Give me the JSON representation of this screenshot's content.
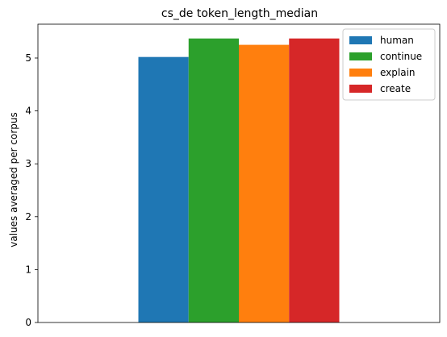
{
  "chart_data": {
    "type": "bar",
    "title": "cs_de token_length_median",
    "xlabel": "",
    "ylabel": "values averaged per corpus",
    "categories": [
      ""
    ],
    "series": [
      {
        "name": "human",
        "values": [
          5.02
        ],
        "color": "#1f77b4"
      },
      {
        "name": "continue",
        "values": [
          5.37
        ],
        "color": "#2ca02c"
      },
      {
        "name": "explain",
        "values": [
          5.25
        ],
        "color": "#ff7f0e"
      },
      {
        "name": "create",
        "values": [
          5.37
        ],
        "color": "#d62728"
      }
    ],
    "ylim": [
      0,
      5.64
    ],
    "yticks": [
      0,
      1,
      2,
      3,
      4,
      5
    ],
    "grid": false,
    "legend_position": "upper-right"
  }
}
